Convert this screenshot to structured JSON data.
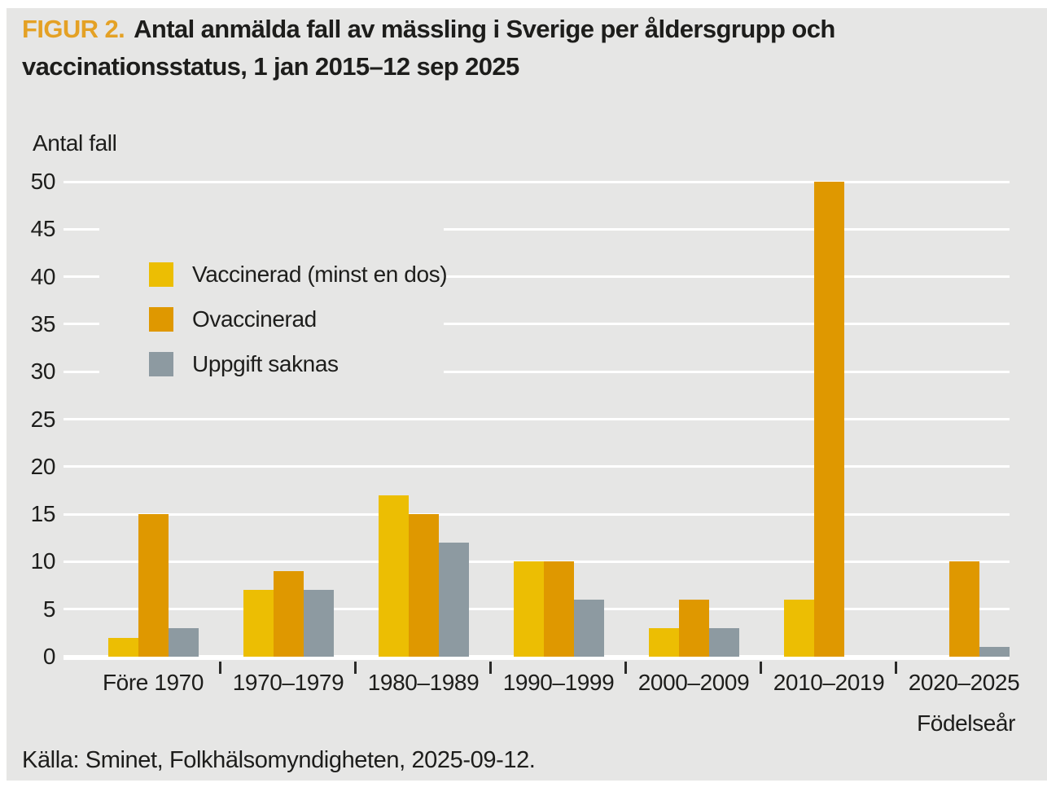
{
  "figure": {
    "label": "FIGUR 2.",
    "title_line1": "Antal anmälda fall av mässling i Sverige per åldersgrupp och",
    "title_line2": "vaccinationsstatus, 1 jan 2015–12 sep 2025"
  },
  "y_axis_label": "Antal fall",
  "x_axis_label": "Födelseår",
  "source_line": "Källa: Sminet, Folkhälsomyndigheten, 2025-09-12.",
  "colors": {
    "page_background": "#ffffff",
    "panel_background": "#e6e6e5",
    "gridline": "#ffffff",
    "text": "#1d1d1b",
    "figure_label_accent": "#e4a125",
    "axis_tick_mark": "#2a2a28"
  },
  "chart_data": {
    "type": "bar",
    "title": "Antal anmälda fall av mässling i Sverige per åldersgrupp och vaccinationsstatus, 1 jan 2015–12 sep 2025",
    "categories": [
      "Före 1970",
      "1970–1979",
      "1980–1989",
      "1990–1999",
      "2000–2009",
      "2010–2019",
      "2020–2025"
    ],
    "series": [
      {
        "name": "Vaccinerad (minst en dos)",
        "color": "#ecbe03",
        "values": [
          2,
          7,
          17,
          10,
          3,
          6,
          0
        ]
      },
      {
        "name": "Ovaccinerad",
        "color": "#df9800",
        "values": [
          15,
          9,
          15,
          10,
          6,
          50,
          10
        ]
      },
      {
        "name": "Uppgift saknas",
        "color": "#8d9aa1",
        "values": [
          3,
          7,
          12,
          6,
          3,
          0,
          1
        ]
      }
    ],
    "xlabel": "Födelseår",
    "ylabel": "Antal fall",
    "ylim": [
      0,
      50
    ],
    "y_ticks": [
      0,
      5,
      10,
      15,
      20,
      25,
      30,
      35,
      40,
      45,
      50
    ],
    "grid": true,
    "legend_position": "upper-left-inside"
  }
}
